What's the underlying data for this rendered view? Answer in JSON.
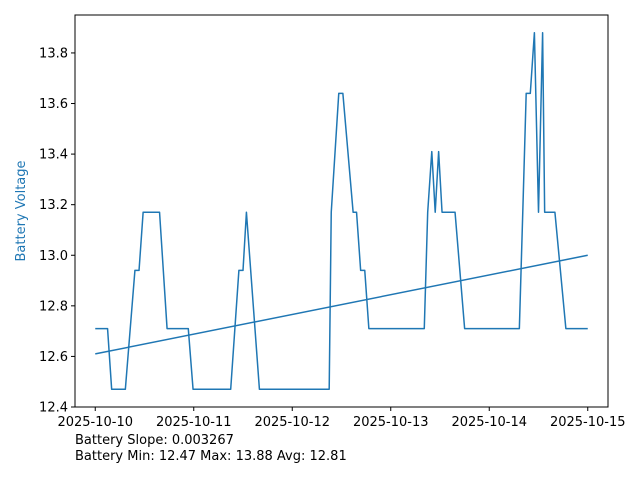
{
  "chart_data": {
    "type": "line",
    "title": "",
    "xlabel": "",
    "ylabel": "Battery Voltage",
    "ylabel_color": "#1f77b4",
    "line_color": "#1f77b4",
    "xlim": [
      "2025-10-09T19:04",
      "2025-10-15T04:56"
    ],
    "ylim": [
      12.4,
      13.95
    ],
    "grid": false,
    "x_ticks": [
      "2025-10-10",
      "2025-10-11",
      "2025-10-12",
      "2025-10-13",
      "2025-10-14",
      "2025-10-15"
    ],
    "y_ticks": [
      "12.4",
      "12.6",
      "12.8",
      "13.0",
      "13.2",
      "13.4",
      "13.6",
      "13.8"
    ],
    "series": [
      {
        "type": "line",
        "points": [
          [
            "2025-10-10T00:00",
            12.71
          ],
          [
            "2025-10-10T03:00",
            12.71
          ],
          [
            "2025-10-10T04:00",
            12.47
          ],
          [
            "2025-10-10T07:20",
            12.47
          ],
          [
            "2025-10-10T09:40",
            12.94
          ],
          [
            "2025-10-10T10:40",
            12.94
          ],
          [
            "2025-10-10T11:40",
            13.17
          ],
          [
            "2025-10-10T15:40",
            13.17
          ],
          [
            "2025-10-10T17:30",
            12.71
          ],
          [
            "2025-10-10T22:40",
            12.71
          ],
          [
            "2025-10-10T23:50",
            12.47
          ],
          [
            "2025-10-11T09:00",
            12.47
          ],
          [
            "2025-10-11T11:00",
            12.94
          ],
          [
            "2025-10-11T12:00",
            12.94
          ],
          [
            "2025-10-11T12:50",
            13.17
          ],
          [
            "2025-10-11T16:00",
            12.47
          ],
          [
            "2025-10-12T09:00",
            12.47
          ],
          [
            "2025-10-12T09:30",
            13.17
          ],
          [
            "2025-10-12T11:20",
            13.64
          ],
          [
            "2025-10-12T12:20",
            13.64
          ],
          [
            "2025-10-12T14:50",
            13.17
          ],
          [
            "2025-10-12T15:40",
            13.17
          ],
          [
            "2025-10-12T16:40",
            12.94
          ],
          [
            "2025-10-12T17:40",
            12.94
          ],
          [
            "2025-10-12T18:40",
            12.71
          ],
          [
            "2025-10-13T08:10",
            12.71
          ],
          [
            "2025-10-13T09:00",
            13.17
          ],
          [
            "2025-10-13T10:00",
            13.41
          ],
          [
            "2025-10-13T10:50",
            13.17
          ],
          [
            "2025-10-13T11:40",
            13.41
          ],
          [
            "2025-10-13T12:30",
            13.17
          ],
          [
            "2025-10-13T15:40",
            13.17
          ],
          [
            "2025-10-13T18:00",
            12.71
          ],
          [
            "2025-10-14T07:20",
            12.71
          ],
          [
            "2025-10-14T08:10",
            13.17
          ],
          [
            "2025-10-14T09:00",
            13.64
          ],
          [
            "2025-10-14T10:00",
            13.64
          ],
          [
            "2025-10-14T11:00",
            13.88
          ],
          [
            "2025-10-14T12:00",
            13.17
          ],
          [
            "2025-10-14T13:00",
            13.88
          ],
          [
            "2025-10-14T13:30",
            13.17
          ],
          [
            "2025-10-14T16:00",
            13.17
          ],
          [
            "2025-10-14T18:40",
            12.71
          ],
          [
            "2025-10-15T00:00",
            12.71
          ]
        ]
      },
      {
        "type": "trend",
        "points": [
          [
            "2025-10-10T00:00",
            12.61
          ],
          [
            "2025-10-15T00:00",
            13.0
          ]
        ]
      }
    ]
  },
  "stats": {
    "slope_line": "Battery Slope: 0.003267",
    "range_line": "Battery Min: 12.47 Max: 13.88 Avg: 12.81"
  }
}
